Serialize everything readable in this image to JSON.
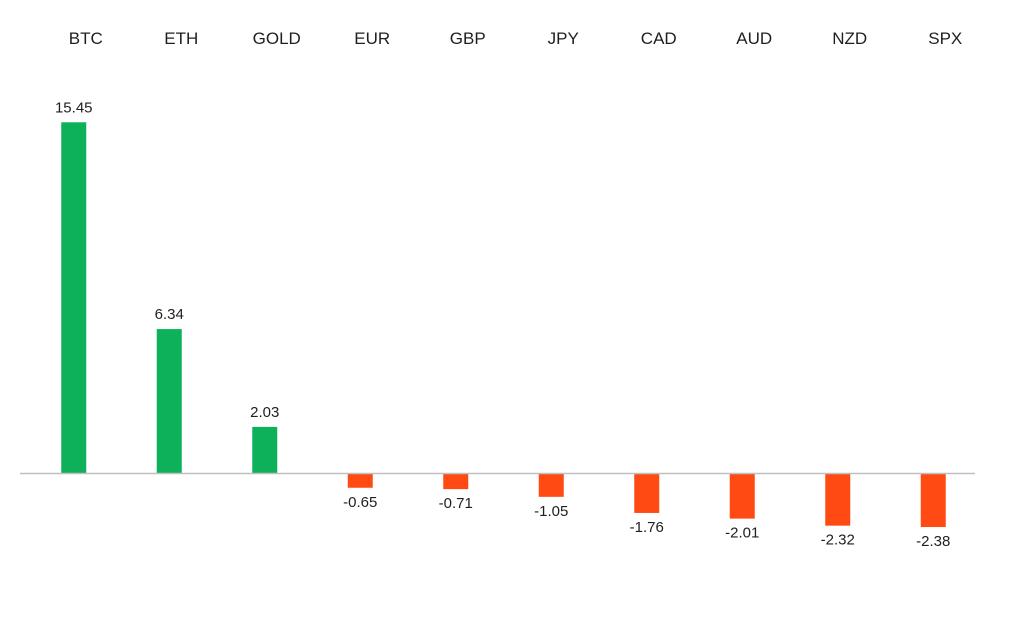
{
  "chart_data": {
    "type": "bar",
    "title": "",
    "xlabel": "",
    "ylabel": "",
    "categories": [
      "BTC",
      "ETH",
      "GOLD",
      "EUR",
      "GBP",
      "JPY",
      "CAD",
      "AUD",
      "NZD",
      "SPX"
    ],
    "values": [
      15.45,
      6.34,
      2.03,
      -0.65,
      -0.71,
      -1.05,
      -1.76,
      -2.01,
      -2.32,
      -2.38
    ],
    "value_labels": [
      "15.45",
      "6.34",
      "2.03",
      "-0.65",
      "-0.71",
      "-1.05",
      "-1.76",
      "-2.01",
      "-2.32",
      "-2.38"
    ],
    "ylim": [
      -3.5,
      16
    ],
    "grid": false,
    "legend": "none",
    "category_label_position": "top",
    "colors": {
      "positive": "#0DB15A",
      "negative": "#FF4A14",
      "axis": "#bfbfbf"
    }
  }
}
